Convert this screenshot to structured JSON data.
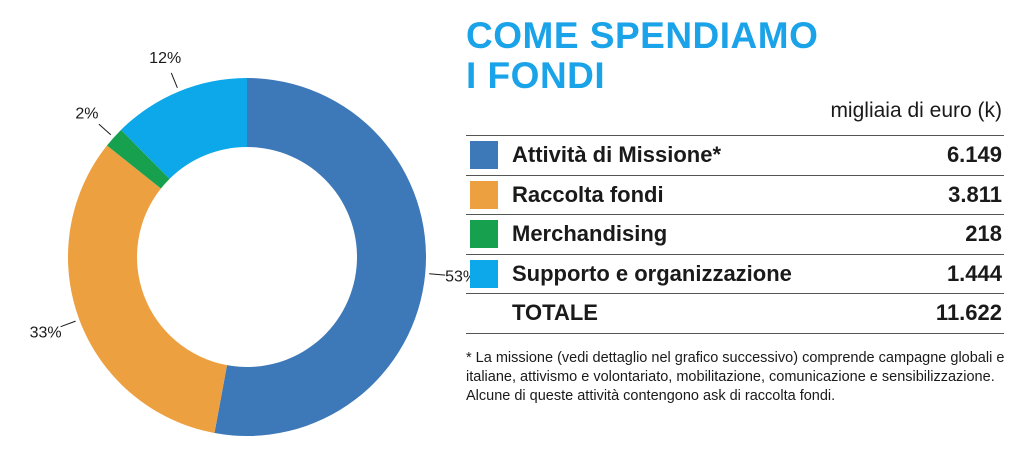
{
  "title_line1": "COME SPENDIAMO",
  "title_line2": "I FONDI",
  "units": "migliaia di euro (k)",
  "colors": {
    "blue": "#3d78b8",
    "orange": "#eca040",
    "green": "#17a14f",
    "lightblue": "#0ca8ea",
    "title": "#1aa3e8"
  },
  "table": {
    "rows": [
      {
        "label": "Attività di Missione*",
        "value": "6.149",
        "color": "#3d78b8"
      },
      {
        "label": "Raccolta fondi",
        "value": "3.811",
        "color": "#eca040"
      },
      {
        "label": "Merchandising",
        "value": "218",
        "color": "#17a14f"
      },
      {
        "label": "Supporto e organizzazione",
        "value": "1.444",
        "color": "#0ca8ea"
      }
    ],
    "total_label": "TOTALE",
    "total_value": "11.622"
  },
  "footnote": "* La missione (vedi dettaglio nel grafico successivo) comprende campagne globali e italiane, attivismo e volontariato, mobilitazione, comunicazione e sensibilizzazione. Alcune di queste attività contengono ask di raccolta fondi.",
  "chart_data": {
    "type": "pie",
    "variant": "donut",
    "labels": [
      "Attività di Missione*",
      "Raccolta fondi",
      "Merchandising",
      "Supporto e organizzazione"
    ],
    "values": [
      6149,
      3811,
      218,
      1444
    ],
    "percent_labels": [
      "53%",
      "33%",
      "2%",
      "12%"
    ],
    "colors": [
      "#3d78b8",
      "#eca040",
      "#17a14f",
      "#0ca8ea"
    ],
    "start": "12 o'clock",
    "direction": "clockwise"
  }
}
